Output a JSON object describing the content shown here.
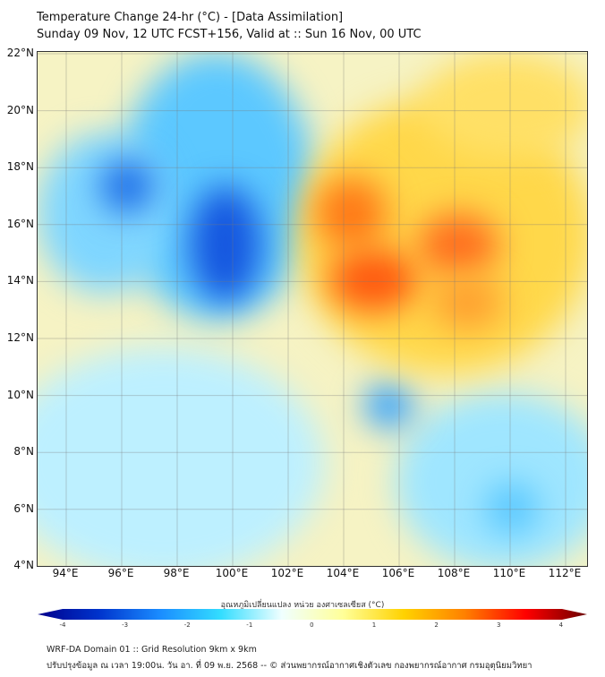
{
  "header": {
    "title": "Temperature Change 24-hr (°C) - [Data Assimilation]",
    "subtitle": "Sunday 09 Nov, 12 UTC FCST+156, Valid at :: Sun 16 Nov, 00 UTC"
  },
  "map": {
    "lat_labels": [
      "22°N",
      "20°N",
      "18°N",
      "16°N",
      "14°N",
      "12°N",
      "10°N",
      "8°N",
      "6°N",
      "4°N"
    ],
    "lon_labels": [
      "94°E",
      "96°E",
      "98°E",
      "100°E",
      "102°E",
      "104°E",
      "106°E",
      "108°E",
      "110°E",
      "112°E"
    ],
    "extent": {
      "lon": [
        93,
        112.5
      ],
      "lat": [
        4,
        22
      ]
    }
  },
  "colorbar": {
    "title": "อุณหภูมิเปลี่ยนแปลง หน่วย องศาเซลเซียส (°C)",
    "ticks": [
      "-4",
      "-3",
      "-2",
      "-1",
      "0",
      "1",
      "2",
      "3",
      "4"
    ],
    "range": [
      -4,
      4
    ],
    "colors": [
      "#00008b",
      "#0033cc",
      "#1a8cff",
      "#33ddff",
      "#f0ffff",
      "#ffff99",
      "#ffd200",
      "#ff8000",
      "#ff0000",
      "#6b0000"
    ]
  },
  "footer": {
    "line1": "WRF-DA Domain 01 :: Grid Resolution 9km x 9km",
    "line2": "ปรับปรุงข้อมูล ณ เวลา 19:00น. วัน อา. ที่ 09 พ.ย. 2568 -- © ส่วนพยากรณ์อากาศเชิงตัวเลข กองพยากรณ์อากาศ กรมอุตุนิยมวิทยา"
  }
}
